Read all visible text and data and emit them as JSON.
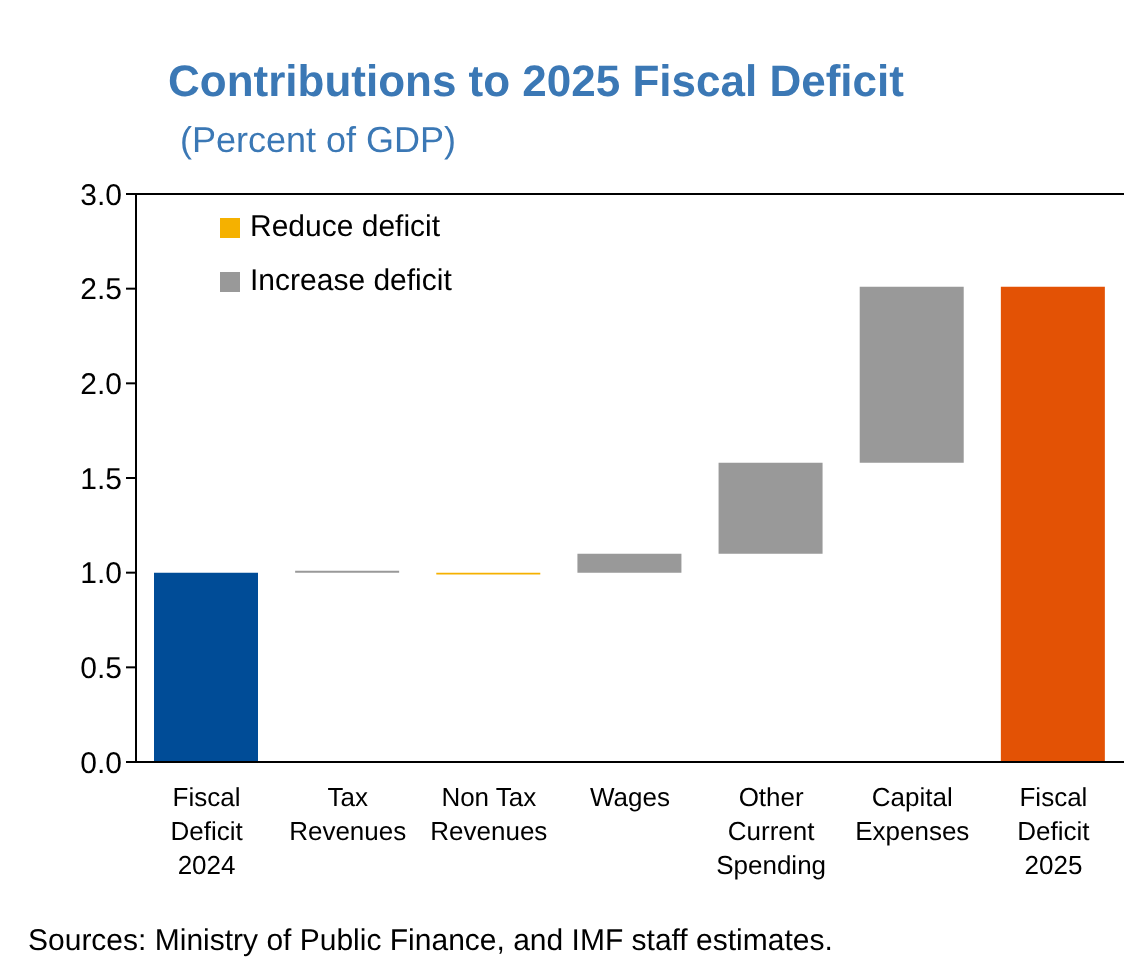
{
  "chart_data": {
    "type": "bar",
    "title": "Contributions to 2025 Fiscal Deficit",
    "subtitle": "(Percent of GDP)",
    "categories": [
      "Fiscal Deficit 2024",
      "Tax Revenues",
      "Non Tax Revenues",
      "Wages",
      "Other Current Spending",
      "Capital Expenses",
      "Fiscal Deficit 2025"
    ],
    "series": [
      {
        "colors": [
          "#004c97",
          null,
          null,
          null,
          null,
          null,
          "#e35205"
        ],
        "values": [
          1.0,
          null,
          null,
          null,
          null,
          null,
          2.51
        ]
      },
      {
        "name": "Reduce deficit",
        "color": "#f5b100",
        "values": [
          null,
          null,
          -0.01,
          null,
          null,
          null,
          null
        ],
        "base": [
          null,
          null,
          1.0,
          null,
          null,
          null,
          null
        ]
      },
      {
        "name": "Increase deficit",
        "color": "#999999",
        "values": [
          null,
          0.01,
          null,
          0.1,
          0.48,
          0.93,
          null
        ],
        "base": [
          null,
          1.0,
          null,
          1.0,
          1.1,
          1.58,
          null
        ]
      }
    ],
    "ylim": [
      0,
      3
    ],
    "yticks": [
      {
        "value": 0,
        "label": "0.0"
      },
      {
        "value": 0.5,
        "label": "0.5"
      },
      {
        "value": 1,
        "label": "1.0"
      },
      {
        "value": 1.5,
        "label": "1.5"
      },
      {
        "value": 2,
        "label": "2.0"
      },
      {
        "value": 2.5,
        "label": "2.5"
      },
      {
        "value": 3,
        "label": "3.0"
      }
    ],
    "legend": "top left",
    "annotations": [
      "Sources: Ministry of Public Finance, and IMF staff estimates."
    ]
  }
}
